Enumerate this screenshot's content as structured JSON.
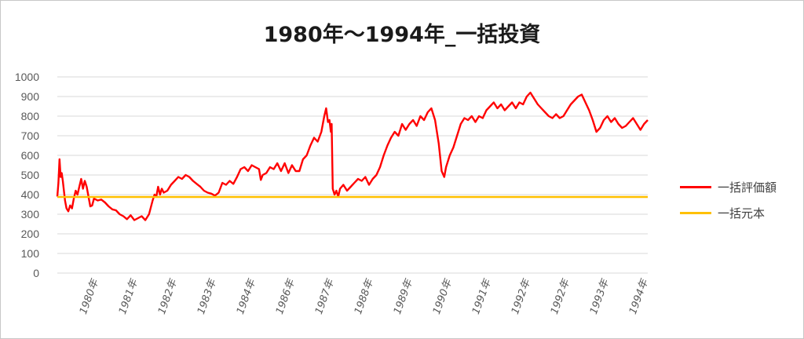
{
  "chart_data": {
    "type": "line",
    "title": "1980年～1994年_一括投資",
    "ylim": [
      0,
      1000
    ],
    "yticks": [
      "0",
      "100",
      "200",
      "300",
      "400",
      "500",
      "600",
      "700",
      "800",
      "900",
      "1000"
    ],
    "xticks": [
      "1980年",
      "1981年",
      "1982年",
      "1983年",
      "1984年",
      "1986年",
      "1987年",
      "1988年",
      "1989年",
      "1990年",
      "1991年",
      "1992年",
      "1992年",
      "1993年",
      "1994年"
    ],
    "grid": true,
    "legend_position": "right",
    "series": [
      {
        "name": "一括評価額",
        "color": "#ff0000",
        "points": [
          [
            0.0,
            390
          ],
          [
            0.003,
            460
          ],
          [
            0.006,
            580
          ],
          [
            0.009,
            490
          ],
          [
            0.012,
            510
          ],
          [
            0.015,
            470
          ],
          [
            0.018,
            420
          ],
          [
            0.021,
            370
          ],
          [
            0.025,
            330
          ],
          [
            0.03,
            315
          ],
          [
            0.035,
            345
          ],
          [
            0.04,
            330
          ],
          [
            0.045,
            380
          ],
          [
            0.05,
            420
          ],
          [
            0.055,
            400
          ],
          [
            0.06,
            440
          ],
          [
            0.065,
            480
          ],
          [
            0.07,
            430
          ],
          [
            0.075,
            470
          ],
          [
            0.08,
            440
          ],
          [
            0.085,
            390
          ],
          [
            0.09,
            340
          ],
          [
            0.095,
            345
          ],
          [
            0.1,
            380
          ],
          [
            0.11,
            370
          ],
          [
            0.12,
            375
          ],
          [
            0.13,
            360
          ],
          [
            0.14,
            340
          ],
          [
            0.15,
            325
          ],
          [
            0.16,
            320
          ],
          [
            0.17,
            300
          ],
          [
            0.18,
            290
          ],
          [
            0.19,
            275
          ],
          [
            0.2,
            295
          ],
          [
            0.21,
            270
          ],
          [
            0.22,
            280
          ],
          [
            0.23,
            290
          ],
          [
            0.24,
            270
          ],
          [
            0.25,
            300
          ],
          [
            0.26,
            370
          ],
          [
            0.265,
            400
          ],
          [
            0.27,
            390
          ],
          [
            0.275,
            440
          ],
          [
            0.28,
            400
          ],
          [
            0.285,
            430
          ],
          [
            0.29,
            410
          ],
          [
            0.3,
            420
          ],
          [
            0.31,
            450
          ],
          [
            0.32,
            470
          ],
          [
            0.33,
            490
          ],
          [
            0.34,
            480
          ],
          [
            0.35,
            500
          ],
          [
            0.36,
            490
          ],
          [
            0.37,
            470
          ],
          [
            0.38,
            455
          ],
          [
            0.39,
            440
          ],
          [
            0.4,
            420
          ],
          [
            0.41,
            410
          ],
          [
            0.42,
            405
          ],
          [
            0.43,
            395
          ],
          [
            0.44,
            410
          ],
          [
            0.45,
            460
          ],
          [
            0.46,
            450
          ],
          [
            0.47,
            470
          ],
          [
            0.48,
            455
          ],
          [
            0.49,
            490
          ],
          [
            0.5,
            530
          ],
          [
            0.51,
            540
          ],
          [
            0.52,
            520
          ],
          [
            0.53,
            550
          ],
          [
            0.54,
            540
          ],
          [
            0.55,
            530
          ],
          [
            0.555,
            475
          ],
          [
            0.56,
            500
          ],
          [
            0.57,
            510
          ],
          [
            0.58,
            540
          ],
          [
            0.59,
            530
          ],
          [
            0.6,
            560
          ],
          [
            0.61,
            520
          ],
          [
            0.62,
            560
          ],
          [
            0.63,
            510
          ],
          [
            0.64,
            550
          ],
          [
            0.65,
            520
          ],
          [
            0.66,
            520
          ],
          [
            0.67,
            580
          ],
          [
            0.68,
            600
          ],
          [
            0.69,
            650
          ],
          [
            0.7,
            690
          ],
          [
            0.71,
            670
          ],
          [
            0.72,
            720
          ],
          [
            0.728,
            800
          ],
          [
            0.733,
            840
          ],
          [
            0.738,
            770
          ],
          [
            0.742,
            780
          ],
          [
            0.746,
            720
          ],
          [
            0.748,
            760
          ],
          [
            0.751,
            430
          ],
          [
            0.756,
            400
          ],
          [
            0.761,
            420
          ],
          [
            0.766,
            390
          ],
          [
            0.771,
            430
          ],
          [
            0.78,
            450
          ],
          [
            0.79,
            420
          ],
          [
            0.8,
            440
          ],
          [
            0.81,
            460
          ],
          [
            0.82,
            480
          ],
          [
            0.83,
            470
          ],
          [
            0.84,
            490
          ],
          [
            0.85,
            450
          ],
          [
            0.86,
            480
          ],
          [
            0.87,
            500
          ],
          [
            0.88,
            540
          ],
          [
            0.89,
            600
          ],
          [
            0.9,
            650
          ],
          [
            0.91,
            690
          ],
          [
            0.92,
            720
          ],
          [
            0.93,
            700
          ],
          [
            0.94,
            760
          ],
          [
            0.95,
            730
          ],
          [
            0.96,
            760
          ],
          [
            0.97,
            780
          ],
          [
            0.98,
            750
          ],
          [
            0.99,
            800
          ],
          [
            1.0,
            780
          ],
          [
            1.01,
            820
          ],
          [
            1.02,
            840
          ],
          [
            1.03,
            780
          ],
          [
            1.04,
            660
          ],
          [
            1.048,
            520
          ],
          [
            1.055,
            490
          ],
          [
            1.06,
            540
          ],
          [
            1.07,
            600
          ],
          [
            1.08,
            640
          ],
          [
            1.09,
            700
          ],
          [
            1.1,
            760
          ],
          [
            1.11,
            790
          ],
          [
            1.12,
            780
          ],
          [
            1.13,
            800
          ],
          [
            1.14,
            770
          ],
          [
            1.15,
            800
          ],
          [
            1.16,
            790
          ],
          [
            1.17,
            830
          ],
          [
            1.18,
            850
          ],
          [
            1.19,
            870
          ],
          [
            1.2,
            840
          ],
          [
            1.21,
            860
          ],
          [
            1.22,
            830
          ],
          [
            1.23,
            850
          ],
          [
            1.24,
            870
          ],
          [
            1.25,
            840
          ],
          [
            1.26,
            870
          ],
          [
            1.27,
            860
          ],
          [
            1.28,
            900
          ],
          [
            1.29,
            920
          ],
          [
            1.3,
            890
          ],
          [
            1.31,
            860
          ],
          [
            1.32,
            840
          ],
          [
            1.33,
            820
          ],
          [
            1.34,
            800
          ],
          [
            1.35,
            790
          ],
          [
            1.36,
            810
          ],
          [
            1.37,
            790
          ],
          [
            1.38,
            800
          ],
          [
            1.39,
            830
          ],
          [
            1.4,
            860
          ],
          [
            1.41,
            880
          ],
          [
            1.42,
            900
          ],
          [
            1.43,
            910
          ],
          [
            1.44,
            870
          ],
          [
            1.45,
            830
          ],
          [
            1.46,
            780
          ],
          [
            1.47,
            720
          ],
          [
            1.48,
            740
          ],
          [
            1.49,
            780
          ],
          [
            1.5,
            800
          ],
          [
            1.51,
            770
          ],
          [
            1.52,
            790
          ],
          [
            1.53,
            760
          ],
          [
            1.54,
            740
          ],
          [
            1.55,
            750
          ],
          [
            1.56,
            770
          ],
          [
            1.57,
            790
          ],
          [
            1.58,
            760
          ],
          [
            1.59,
            730
          ],
          [
            1.6,
            760
          ],
          [
            1.61,
            780
          ]
        ]
      },
      {
        "name": "一括元本",
        "color": "#ffc000",
        "points": [
          [
            0.0,
            388
          ],
          [
            1.61,
            388
          ]
        ]
      }
    ]
  }
}
